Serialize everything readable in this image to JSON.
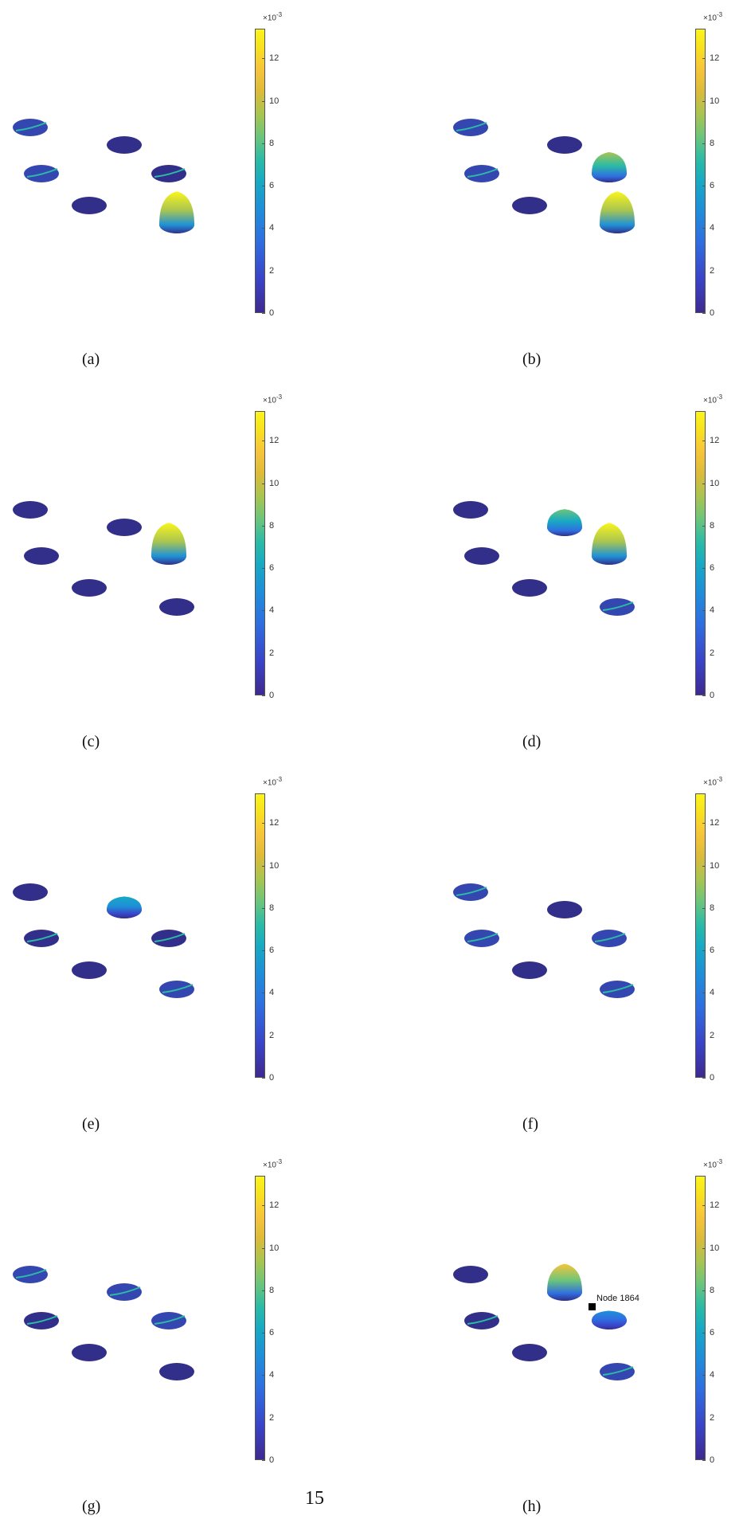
{
  "figure": {
    "colorbar": {
      "exponent_base": "×10",
      "exponent_power": "-3",
      "ticks": [
        "0",
        "2",
        "4",
        "6",
        "8",
        "10",
        "12"
      ],
      "colormap": [
        "#3e2a8f",
        "#3a44c8",
        "#2f6ee0",
        "#1e90d8",
        "#17a9c4",
        "#2bbba6",
        "#6cc57a",
        "#a8c551",
        "#dcbb3a",
        "#f7c53a",
        "#f9e21d",
        "#faf51c"
      ]
    },
    "panels": [
      {
        "label": "(a)",
        "bumps": {
          "d4": 1.0,
          "d0": 0.15,
          "d1": 0.15,
          "d3": 0.1
        }
      },
      {
        "label": "(b)",
        "bumps": {
          "d4": 1.0,
          "d3": 0.65,
          "d0": 0.15,
          "d1": 0.15
        }
      },
      {
        "label": "(c)",
        "bumps": {
          "d3": 1.0
        }
      },
      {
        "label": "(d)",
        "bumps": {
          "d3": 1.0,
          "d2": 0.55,
          "d4": 0.2
        }
      },
      {
        "label": "(e)",
        "bumps": {
          "d2": 0.4,
          "d3": 0.25,
          "d4": 0.15,
          "d1": 0.05
        }
      },
      {
        "label": "(f)",
        "bumps": {
          "d0": 0.2,
          "d1": 0.2,
          "d3": 0.15,
          "d4": 0.15
        }
      },
      {
        "label": "(g)",
        "bumps": {
          "d0": 0.15,
          "d2": 0.2,
          "d3": 0.15,
          "d1": 0.1
        }
      },
      {
        "label": "(h)",
        "bumps": {
          "d2": 0.85,
          "d3": 0.3,
          "d4": 0.15,
          "d1": 0.1
        },
        "annotation": "Node 1864"
      }
    ]
  },
  "page_number": "15"
}
